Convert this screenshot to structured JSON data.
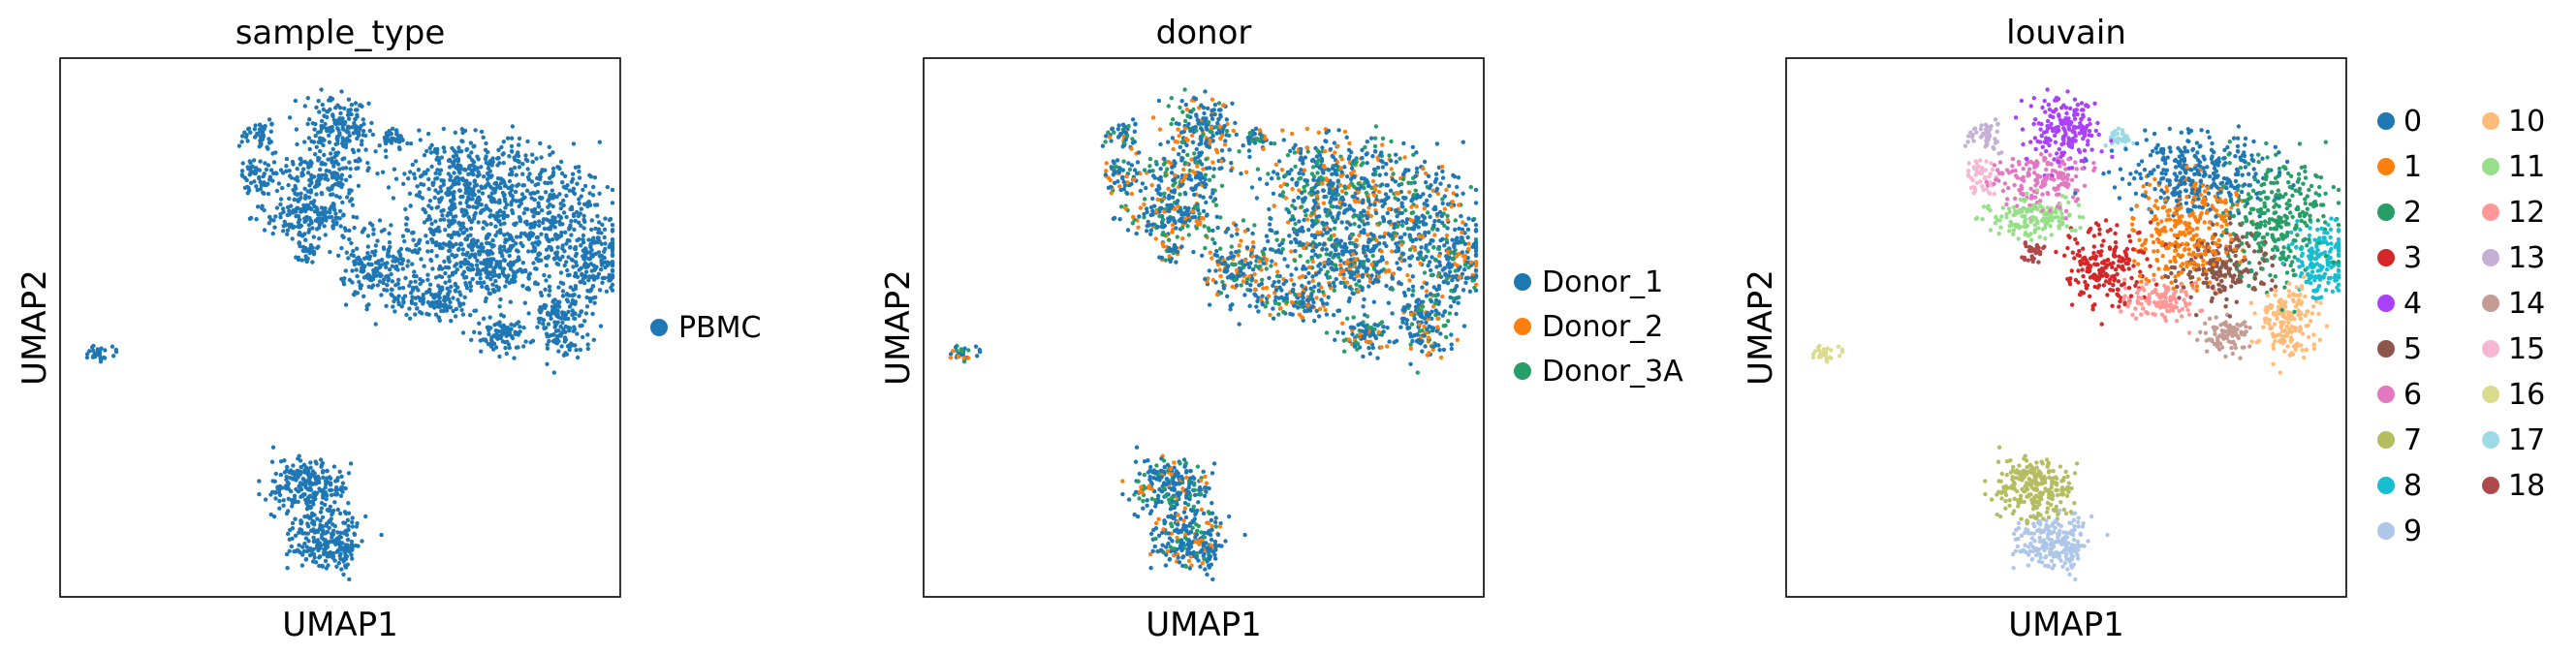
{
  "chart_data": [
    {
      "type": "scatter",
      "title": "sample_type",
      "xlabel": "UMAP1",
      "ylabel": "UMAP2",
      "grid": false,
      "ticks": false,
      "legend_position": "right",
      "legend": [
        {
          "label": "PBMC",
          "color": "#1f77b4"
        }
      ]
    },
    {
      "type": "scatter",
      "title": "donor",
      "xlabel": "UMAP1",
      "ylabel": "UMAP2",
      "grid": false,
      "ticks": false,
      "legend_position": "right",
      "legend": [
        {
          "label": "Donor_1",
          "color": "#1f77b4"
        },
        {
          "label": "Donor_2",
          "color": "#ff7f0e"
        },
        {
          "label": "Donor_3A",
          "color": "#279e68"
        }
      ]
    },
    {
      "type": "scatter",
      "title": "louvain",
      "xlabel": "UMAP1",
      "ylabel": "UMAP2",
      "grid": false,
      "ticks": false,
      "legend_position": "right",
      "legend_columns": 2,
      "legend": [
        {
          "label": "0",
          "color": "#1f77b4"
        },
        {
          "label": "1",
          "color": "#ff7f0e"
        },
        {
          "label": "2",
          "color": "#279e68"
        },
        {
          "label": "3",
          "color": "#d62728"
        },
        {
          "label": "4",
          "color": "#aa40fc"
        },
        {
          "label": "5",
          "color": "#8c564b"
        },
        {
          "label": "6",
          "color": "#e377c2"
        },
        {
          "label": "7",
          "color": "#b5bd61"
        },
        {
          "label": "8",
          "color": "#17becf"
        },
        {
          "label": "9",
          "color": "#aec7e8"
        },
        {
          "label": "10",
          "color": "#ffbb78"
        },
        {
          "label": "11",
          "color": "#98df8a"
        },
        {
          "label": "12",
          "color": "#ff9896"
        },
        {
          "label": "13",
          "color": "#c5b0d5"
        },
        {
          "label": "14",
          "color": "#c49c94"
        },
        {
          "label": "15",
          "color": "#f7b6d2"
        },
        {
          "label": "16",
          "color": "#dbdb8d"
        },
        {
          "label": "17",
          "color": "#9edae5"
        },
        {
          "label": "18",
          "color": "#ad494a"
        }
      ]
    }
  ]
}
